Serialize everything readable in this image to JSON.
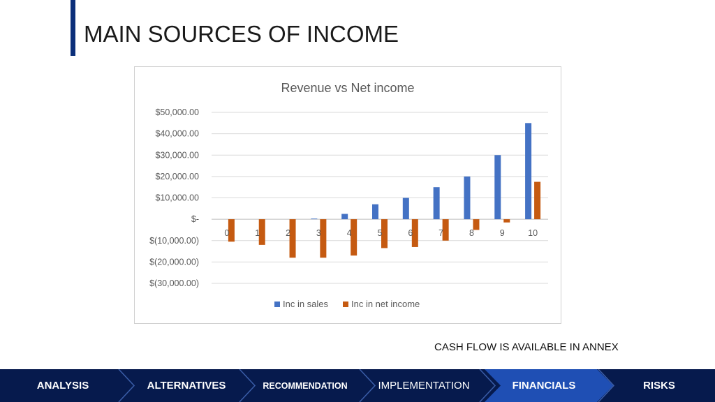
{
  "slide": {
    "title": "MAIN SOURCES OF INCOME",
    "note": "CASH FLOW IS AVAILABLE IN ANNEX",
    "accent_color": "#0b2f7a"
  },
  "nav": {
    "items": [
      {
        "label": "ANALYSIS",
        "active": false
      },
      {
        "label": "ALTERNATIVES",
        "active": false
      },
      {
        "label": "RECOMMENDATION",
        "active": false
      },
      {
        "label": "IMPLEMENTATION",
        "active": false
      },
      {
        "label": "FINANCIALS",
        "active": true
      },
      {
        "label": "RISKS",
        "active": false
      }
    ],
    "bg_color": "#061a4d",
    "active_color": "#1f4fb4"
  },
  "chart_data": {
    "type": "bar",
    "title": "Revenue vs Net income",
    "xlabel": "",
    "ylabel": "",
    "categories": [
      "0",
      "1",
      "2",
      "3",
      "4",
      "5",
      "6",
      "7",
      "8",
      "9",
      "10"
    ],
    "series": [
      {
        "name": "Inc in sales",
        "color": "#4472c4",
        "values": [
          0,
          0,
          0,
          300,
          2500,
          7000,
          10000,
          15000,
          20000,
          30000,
          45000
        ]
      },
      {
        "name": "Inc in net income",
        "color": "#c55a11",
        "values": [
          -10500,
          -12000,
          -18000,
          -18000,
          -17000,
          -13500,
          -13000,
          -10000,
          -5000,
          -1500,
          17500
        ]
      }
    ],
    "ylim": [
      -30000,
      50000
    ],
    "yticks": [
      50000,
      40000,
      30000,
      20000,
      10000,
      0,
      -10000,
      -20000,
      -30000
    ],
    "ytick_labels": [
      "$50,000.00",
      "$40,000.00",
      "$30,000.00",
      "$20,000.00",
      "$10,000.00",
      "$-",
      "$(10,000.00)",
      "$(20,000.00)",
      "$(30,000.00)"
    ],
    "grid": true,
    "legend_position": "bottom"
  }
}
